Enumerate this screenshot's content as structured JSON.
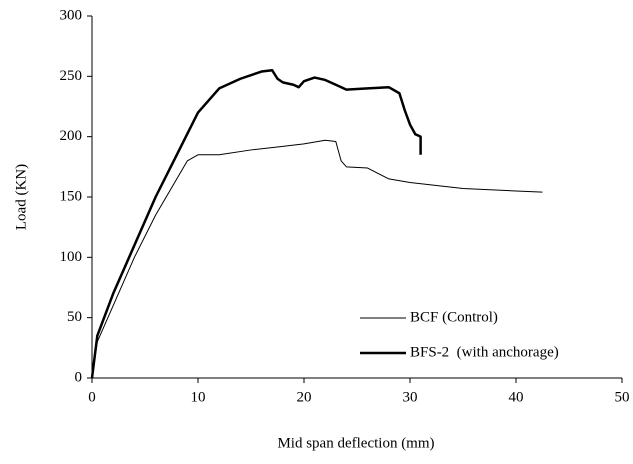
{
  "chart_data": {
    "type": "line",
    "xlabel": "Mid span deflection (mm)",
    "ylabel": "Load (KN)",
    "xlim": [
      0,
      50
    ],
    "xticks": [
      0,
      10,
      20,
      30,
      40,
      50
    ],
    "ylim": [
      0,
      300
    ],
    "yticks": [
      0,
      50,
      100,
      150,
      200,
      250,
      300
    ],
    "legend": "lower right",
    "series": [
      {
        "name": "BCF (Control)",
        "color": "#000000",
        "width": 1,
        "x": [
          0,
          0.5,
          2,
          4,
          6,
          8,
          9,
          10,
          12,
          15,
          18,
          20,
          22,
          23,
          23.5,
          24,
          26,
          28,
          30,
          35,
          40,
          42.5
        ],
        "values": [
          0,
          30,
          60,
          100,
          135,
          165,
          180,
          185,
          185,
          189,
          192,
          194,
          197,
          196,
          180,
          175,
          174,
          165,
          162,
          157,
          155,
          154
        ]
      },
      {
        "name": "BFS-2  (with anchorage)",
        "color": "#000000",
        "width": 2.5,
        "x": [
          0,
          0.5,
          2,
          4,
          6,
          8,
          10,
          12,
          14,
          16,
          17,
          17.5,
          18,
          19,
          19.5,
          20,
          21,
          22,
          23,
          24,
          26,
          28,
          29,
          29.5,
          30,
          30.5,
          31,
          31
        ],
        "values": [
          0,
          35,
          70,
          110,
          150,
          185,
          220,
          240,
          248,
          254,
          255,
          248,
          245,
          243,
          241,
          246,
          249,
          247,
          243,
          239,
          240,
          241,
          236,
          222,
          210,
          202,
          200,
          185
        ]
      }
    ]
  }
}
